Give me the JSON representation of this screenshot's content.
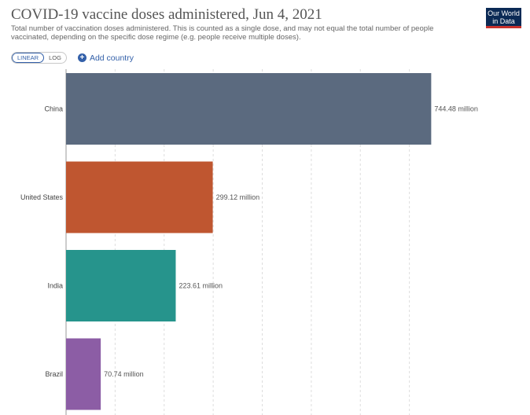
{
  "header": {
    "title": "COVID-19 vaccine doses administered, Jun 4, 2021",
    "subtitle": "Total number of vaccination doses administered. This is counted as a single dose, and may not equal the total number of people vaccinated, depending on the specific dose regime (e.g. people receive multiple doses).",
    "logo_text": "Our World in Data"
  },
  "controls": {
    "linear_label": "LINEAR",
    "log_label": "LOG",
    "add_country_label": "Add country",
    "accent_color": "#3360a9"
  },
  "chart_data": {
    "type": "bar",
    "orientation": "horizontal",
    "categories": [
      "China",
      "United States",
      "India",
      "Brazil"
    ],
    "values": [
      744.48,
      299.12,
      223.61,
      70.74
    ],
    "value_labels": [
      "744.48 million",
      "299.12 million",
      "223.61 million",
      "70.74 million"
    ],
    "colors": [
      "#5b6a7f",
      "#bf5630",
      "#26948c",
      "#8c5da5"
    ],
    "unit": "million",
    "xlim": [
      0,
      800
    ],
    "grid": true
  }
}
